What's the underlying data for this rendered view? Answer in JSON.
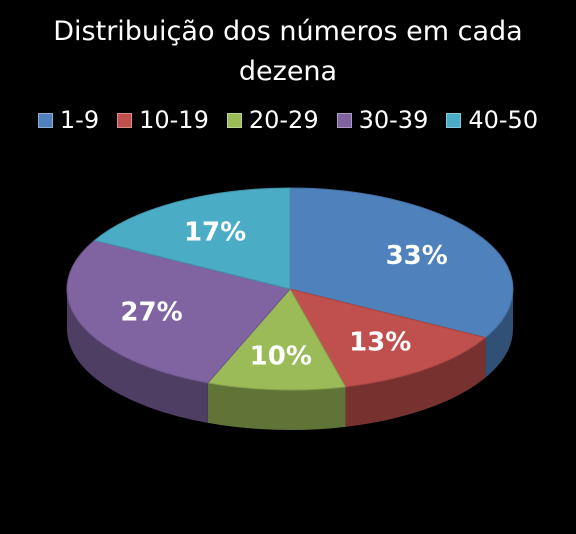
{
  "chart_data": {
    "type": "pie",
    "title": "Distribuição dos números em cada dezena",
    "categories": [
      "1-9",
      "10-19",
      "20-29",
      "30-39",
      "40-50"
    ],
    "values": [
      33,
      13,
      10,
      27,
      17
    ],
    "labels": [
      "33%",
      "13%",
      "10%",
      "27%",
      "17%"
    ],
    "colors": [
      "#4F81BD",
      "#C0504D",
      "#9BBB59",
      "#8064A2",
      "#4BACC6"
    ],
    "legend_position": "top",
    "style": "3d"
  }
}
